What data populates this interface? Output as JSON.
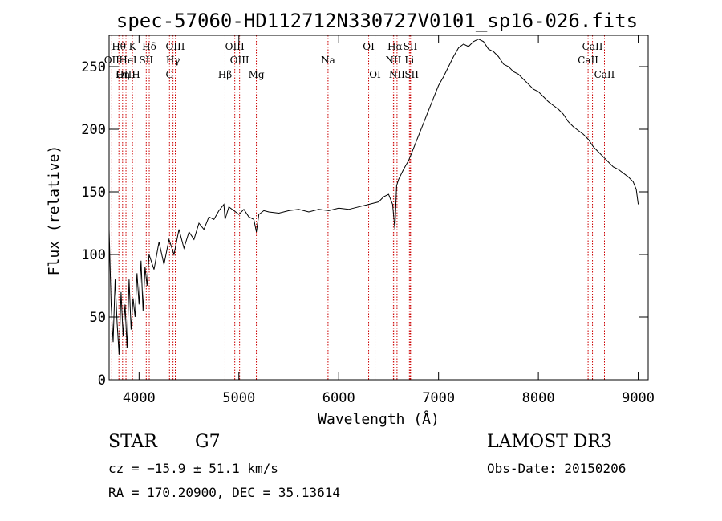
{
  "chart_data": {
    "type": "line",
    "title": "spec-57060-HD112712N330727V0101_sp16-026.fits",
    "xlabel": "Wavelength (Å)",
    "ylabel": "Flux (relative)",
    "xlim": [
      3700,
      9100
    ],
    "ylim": [
      0,
      275
    ],
    "x_ticks": [
      4000,
      5000,
      6000,
      7000,
      8000,
      9000
    ],
    "y_ticks": [
      0,
      50,
      100,
      150,
      200,
      250
    ],
    "series": [
      {
        "name": "spectrum",
        "x": [
          3700,
          3720,
          3740,
          3760,
          3780,
          3800,
          3820,
          3840,
          3860,
          3880,
          3900,
          3920,
          3940,
          3960,
          3980,
          4000,
          4020,
          4040,
          4060,
          4080,
          4100,
          4150,
          4200,
          4250,
          4300,
          4350,
          4400,
          4450,
          4500,
          4550,
          4600,
          4650,
          4700,
          4750,
          4800,
          4850,
          4861,
          4900,
          4950,
          5000,
          5050,
          5100,
          5150,
          5175,
          5200,
          5250,
          5300,
          5400,
          5500,
          5600,
          5700,
          5800,
          5900,
          6000,
          6100,
          6200,
          6300,
          6400,
          6450,
          6500,
          6540,
          6563,
          6580,
          6600,
          6650,
          6700,
          6750,
          6800,
          6850,
          6900,
          6950,
          7000,
          7050,
          7100,
          7150,
          7200,
          7250,
          7300,
          7350,
          7400,
          7450,
          7500,
          7550,
          7600,
          7650,
          7700,
          7750,
          7800,
          7850,
          7900,
          7950,
          8000,
          8050,
          8100,
          8150,
          8200,
          8250,
          8300,
          8350,
          8400,
          8450,
          8500,
          8550,
          8600,
          8650,
          8700,
          8750,
          8800,
          8850,
          8900,
          8950,
          8980,
          9000
        ],
        "values": [
          120,
          60,
          30,
          80,
          45,
          20,
          70,
          35,
          60,
          25,
          80,
          40,
          65,
          50,
          85,
          60,
          95,
          55,
          90,
          75,
          100,
          88,
          110,
          92,
          112,
          100,
          120,
          105,
          118,
          112,
          125,
          120,
          130,
          128,
          135,
          140,
          128,
          138,
          135,
          132,
          136,
          130,
          128,
          118,
          132,
          135,
          134,
          133,
          135,
          136,
          134,
          136,
          135,
          137,
          136,
          138,
          140,
          142,
          146,
          148,
          140,
          120,
          155,
          160,
          168,
          175,
          185,
          195,
          205,
          215,
          225,
          235,
          242,
          250,
          258,
          265,
          268,
          266,
          270,
          272,
          270,
          264,
          262,
          258,
          252,
          250,
          246,
          244,
          240,
          236,
          232,
          230,
          226,
          222,
          219,
          216,
          212,
          206,
          202,
          199,
          196,
          192,
          186,
          182,
          178,
          174,
          170,
          168,
          165,
          162,
          158,
          152,
          140
        ]
      }
    ],
    "lines": [
      {
        "name": "Hθ",
        "x": 3798,
        "row": 1
      },
      {
        "name": "OII",
        "x": 3727,
        "row": 2
      },
      {
        "name": "OIII",
        "x": 3869,
        "row": 3
      },
      {
        "name": "K",
        "x": 3934,
        "row": 1
      },
      {
        "name": "HeI",
        "x": 3889,
        "row": 2
      },
      {
        "name": "Hη",
        "x": 3835,
        "row": 3
      },
      {
        "name": "Hδ",
        "x": 4102,
        "row": 1
      },
      {
        "name": "SII",
        "x": 4072,
        "row": 2
      },
      {
        "name": "H",
        "x": 3969,
        "row": 3
      },
      {
        "name": "OIII",
        "x": 4363,
        "row": 1
      },
      {
        "name": "Hγ",
        "x": 4340,
        "row": 2
      },
      {
        "name": "G",
        "x": 4305,
        "row": 3
      },
      {
        "name": "Hβ",
        "x": 4861,
        "row": 3
      },
      {
        "name": "OIII",
        "x": 4959,
        "row": 1
      },
      {
        "name": "OIII",
        "x": 5007,
        "row": 2
      },
      {
        "name": "Mg",
        "x": 5175,
        "row": 3
      },
      {
        "name": "Na",
        "x": 5893,
        "row": 2
      },
      {
        "name": "OI",
        "x": 6300,
        "row": 1
      },
      {
        "name": "OI",
        "x": 6364,
        "row": 3
      },
      {
        "name": "Hα",
        "x": 6563,
        "row": 1
      },
      {
        "name": "NII",
        "x": 6548,
        "row": 2
      },
      {
        "name": "NII",
        "x": 6584,
        "row": 3
      },
      {
        "name": "SII",
        "x": 6717,
        "row": 1
      },
      {
        "name": "Li",
        "x": 6708,
        "row": 2
      },
      {
        "name": "SII",
        "x": 6731,
        "row": 3
      },
      {
        "name": "CaII",
        "x": 8542,
        "row": 1
      },
      {
        "name": "CaII",
        "x": 8498,
        "row": 2
      },
      {
        "name": "CaII",
        "x": 8662,
        "row": 3
      }
    ]
  },
  "footer": {
    "class_label": "STAR",
    "subclass": "G7",
    "survey": "LAMOST DR3",
    "cz_text": "cz = −15.9 ± 51.1 km/s",
    "obs_date_text": "Obs-Date: 20150206",
    "coords_text": "RA = 170.20900, DEC =  35.13614"
  },
  "colors": {
    "axis": "#000000",
    "spectrum": "#000000",
    "line_marker": "#cc0000",
    "background": "#ffffff"
  }
}
